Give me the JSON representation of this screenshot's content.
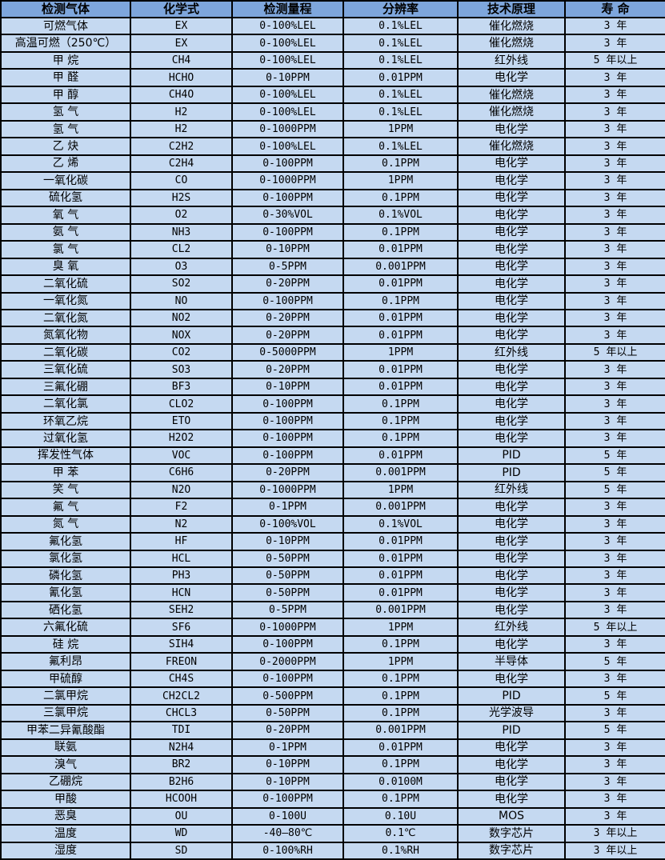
{
  "table": {
    "columns": [
      "检测气体",
      "化学式",
      "检测量程",
      "分辨率",
      "技术原理",
      "寿 命"
    ],
    "column_keys": [
      "gas-name",
      "formula",
      "range",
      "resolution",
      "principle",
      "lifespan"
    ],
    "rows": [
      [
        "可燃气体",
        "EX",
        "0-100%LEL",
        "0.1%LEL",
        "催化燃烧",
        "3 年"
      ],
      [
        "高温可燃（250℃）",
        "EX",
        "0-100%LEL",
        "0.1%LEL",
        "催化燃烧",
        "3 年"
      ],
      [
        "甲 烷",
        "CH4",
        "0-100%LEL",
        "0.1%LEL",
        "红外线",
        "5 年以上"
      ],
      [
        "甲 醛",
        "HCHO",
        "0-10PPM",
        "0.01PPM",
        "电化学",
        "3 年"
      ],
      [
        "甲 醇",
        "CH4O",
        "0-100%LEL",
        "0.1%LEL",
        "催化燃烧",
        "3 年"
      ],
      [
        "氢 气",
        "H2",
        "0-100%LEL",
        "0.1%LEL",
        "催化燃烧",
        "3 年"
      ],
      [
        "氢 气",
        "H2",
        "0-1000PPM",
        "1PPM",
        "电化学",
        "3 年"
      ],
      [
        "乙 炔",
        "C2H2",
        "0-100%LEL",
        "0.1%LEL",
        "催化燃烧",
        "3 年"
      ],
      [
        "乙 烯",
        "C2H4",
        "0-100PPM",
        "0.1PPM",
        "电化学",
        "3 年"
      ],
      [
        "一氧化碳",
        "CO",
        "0-1000PPM",
        "1PPM",
        "电化学",
        "3 年"
      ],
      [
        "硫化氢",
        "H2S",
        "0-100PPM",
        "0.1PPM",
        "电化学",
        "3 年"
      ],
      [
        "氧 气",
        "O2",
        "0-30%VOL",
        "0.1%VOL",
        "电化学",
        "3 年"
      ],
      [
        "氨 气",
        "NH3",
        "0-100PPM",
        "0.1PPM",
        "电化学",
        "3 年"
      ],
      [
        "氯 气",
        "CL2",
        "0-10PPM",
        "0.01PPM",
        "电化学",
        "3 年"
      ],
      [
        "臭 氧",
        "O3",
        "0-5PPM",
        "0.001PPM",
        "电化学",
        "3 年"
      ],
      [
        "二氧化硫",
        "SO2",
        "0-20PPM",
        "0.01PPM",
        "电化学",
        "3 年"
      ],
      [
        "一氧化氮",
        "NO",
        "0-100PPM",
        "0.1PPM",
        "电化学",
        "3 年"
      ],
      [
        "二氧化氮",
        "NO2",
        "0-20PPM",
        "0.01PPM",
        "电化学",
        "3 年"
      ],
      [
        "氮氧化物",
        "NOX",
        "0-20PPM",
        "0.01PPM",
        "电化学",
        "3 年"
      ],
      [
        "二氧化碳",
        "CO2",
        "0-5000PPM",
        "1PPM",
        "红外线",
        "5 年以上"
      ],
      [
        "三氧化硫",
        "SO3",
        "0-20PPM",
        "0.01PPM",
        "电化学",
        "3 年"
      ],
      [
        "三氟化硼",
        "BF3",
        "0-10PPM",
        "0.01PPM",
        "电化学",
        "3 年"
      ],
      [
        "二氧化氯",
        "CLO2",
        "0-100PPM",
        "0.1PPM",
        "电化学",
        "3 年"
      ],
      [
        "环氧乙烷",
        "ETO",
        "0-100PPM",
        "0.1PPM",
        "电化学",
        "3 年"
      ],
      [
        "过氧化氢",
        "H2O2",
        "0-100PPM",
        "0.1PPM",
        "电化学",
        "3 年"
      ],
      [
        "挥发性气体",
        "VOC",
        "0-100PPM",
        "0.01PPM",
        "PID",
        "5 年"
      ],
      [
        "甲 苯",
        "C6H6",
        "0-20PPM",
        "0.001PPM",
        "PID",
        "5 年"
      ],
      [
        "笑 气",
        "N2O",
        "0-1000PPM",
        "1PPM",
        "红外线",
        "5 年"
      ],
      [
        "氟 气",
        "F2",
        "0-1PPM",
        "0.001PPM",
        "电化学",
        "3 年"
      ],
      [
        "氮 气",
        "N2",
        "0-100%VOL",
        "0.1%VOL",
        "电化学",
        "3 年"
      ],
      [
        "氟化氢",
        "HF",
        "0-10PPM",
        "0.01PPM",
        "电化学",
        "3 年"
      ],
      [
        "氯化氢",
        "HCL",
        "0-50PPM",
        "0.01PPM",
        "电化学",
        "3 年"
      ],
      [
        "磷化氢",
        "PH3",
        "0-50PPM",
        "0.01PPM",
        "电化学",
        "3 年"
      ],
      [
        "氰化氢",
        "HCN",
        "0-50PPM",
        "0.01PPM",
        "电化学",
        "3 年"
      ],
      [
        "硒化氢",
        "SEH2",
        "0-5PPM",
        "0.001PPM",
        "电化学",
        "3 年"
      ],
      [
        "六氟化硫",
        "SF6",
        "0-1000PPM",
        "1PPM",
        "红外线",
        "5 年以上"
      ],
      [
        "硅 烷",
        "SIH4",
        "0-100PPM",
        "0.1PPM",
        "电化学",
        "3 年"
      ],
      [
        "氟利昂",
        "FREON",
        "0-2000PPM",
        "1PPM",
        "半导体",
        "5 年"
      ],
      [
        "甲硫醇",
        "CH4S",
        "0-100PPM",
        "0.1PPM",
        "电化学",
        "3 年"
      ],
      [
        "二氯甲烷",
        "CH2CL2",
        "0-500PPM",
        "0.1PPM",
        "PID",
        "5 年"
      ],
      [
        "三氯甲烷",
        "CHCL3",
        "0-50PPM",
        "0.1PPM",
        "光学波导",
        "3 年"
      ],
      [
        "甲苯二异氰酸酯",
        "TDI",
        "0-20PPM",
        "0.001PPM",
        "PID",
        "5 年"
      ],
      [
        "联氨",
        "N2H4",
        "0-1PPM",
        "0.01PPM",
        "电化学",
        "3 年"
      ],
      [
        "溴气",
        "BR2",
        "0-10PPM",
        "0.1PPM",
        "电化学",
        "3 年"
      ],
      [
        "乙硼烷",
        "B2H6",
        "0-10PPM",
        "0.0100M",
        "电化学",
        "3 年"
      ],
      [
        "甲酸",
        "HCOOH",
        "0-100PPM",
        "0.1PPM",
        "电化学",
        "3 年"
      ],
      [
        "恶臭",
        "OU",
        "0-100U",
        "0.10U",
        "MOS",
        "3 年"
      ],
      [
        "温度",
        "WD",
        "-40—80℃",
        "0.1℃",
        "数字芯片",
        "3 年以上"
      ],
      [
        "湿度",
        "SD",
        "0-100%RH",
        "0.1%RH",
        "数字芯片",
        "3 年以上"
      ]
    ]
  },
  "colors": {
    "header_bg": "#7EA6DC",
    "row_bg": "#C5D9F1",
    "border": "#000000",
    "text": "#000000"
  }
}
